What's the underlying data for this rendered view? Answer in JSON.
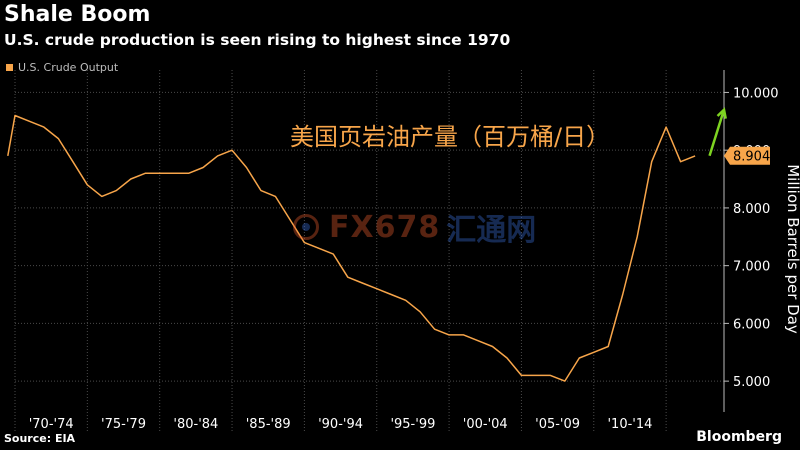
{
  "header": {
    "title": "Shale Boom",
    "subtitle": "U.S. crude production is seen rising to highest since 1970"
  },
  "legend": {
    "label": "U.S. Crude Output"
  },
  "annotation": "美国页岩油产量（百万桶/日）",
  "footer": {
    "source": "Source: EIA",
    "brand": "Bloomberg"
  },
  "watermark": {
    "brand_text": "FX678",
    "brand_cn": "汇通网"
  },
  "colors": {
    "series": "#f7a54a",
    "arrow": "#7ed321",
    "background": "#000000",
    "grid": "#4a4a4a"
  },
  "chart_data": {
    "type": "line",
    "title": "Shale Boom",
    "ylabel": "Million Barrels per Day",
    "ylim": [
      4.5,
      10.25
    ],
    "yticks": [
      5.0,
      6.0,
      7.0,
      8.0,
      9.0,
      10.0
    ],
    "ytick_labels": [
      "5.000",
      "6.000",
      "7.000",
      "8.000",
      "9.000",
      "10.000"
    ],
    "xlim": [
      1970,
      2019
    ],
    "x_groups": [
      {
        "label": "'70-'74",
        "start": 1970,
        "end": 1975
      },
      {
        "label": "'75-'79",
        "start": 1975,
        "end": 1980
      },
      {
        "label": "'80-'84",
        "start": 1980,
        "end": 1985
      },
      {
        "label": "'85-'89",
        "start": 1985,
        "end": 1990
      },
      {
        "label": "'90-'94",
        "start": 1990,
        "end": 1995
      },
      {
        "label": "'95-'99",
        "start": 1995,
        "end": 2000
      },
      {
        "label": "'00-'04",
        "start": 2000,
        "end": 2005
      },
      {
        "label": "'05-'09",
        "start": 2005,
        "end": 2010
      },
      {
        "label": "'10-'14",
        "start": 2010,
        "end": 2015
      }
    ],
    "grid": true,
    "legend_position": "top-left",
    "last_value_label": "8.904",
    "series": [
      {
        "name": "U.S. Crude Output",
        "x": [
          1969.5,
          1970,
          1971,
          1972,
          1973,
          1974,
          1975,
          1976,
          1977,
          1978,
          1979,
          1980,
          1981,
          1982,
          1983,
          1984,
          1985,
          1986,
          1987,
          1988,
          1989,
          1990,
          1991,
          1992,
          1993,
          1994,
          1995,
          1996,
          1997,
          1998,
          1999,
          2000,
          2001,
          2002,
          2003,
          2004,
          2005,
          2006,
          2007,
          2008,
          2009,
          2010,
          2011,
          2012,
          2013,
          2014,
          2015,
          2016,
          2017
        ],
        "y": [
          8.9,
          9.6,
          9.5,
          9.4,
          9.2,
          8.8,
          8.4,
          8.2,
          8.3,
          8.5,
          8.6,
          8.6,
          8.6,
          8.6,
          8.7,
          8.9,
          9.0,
          8.7,
          8.3,
          8.2,
          7.8,
          7.4,
          7.3,
          7.2,
          6.8,
          6.7,
          6.6,
          6.5,
          6.4,
          6.2,
          5.9,
          5.8,
          5.8,
          5.7,
          5.6,
          5.4,
          5.1,
          5.1,
          5.1,
          5.0,
          5.4,
          5.5,
          5.6,
          6.5,
          7.5,
          8.8,
          9.4,
          8.8,
          8.9
        ]
      }
    ],
    "projection": {
      "from": [
        2018,
        8.904
      ],
      "to": [
        2019,
        9.7
      ]
    }
  }
}
